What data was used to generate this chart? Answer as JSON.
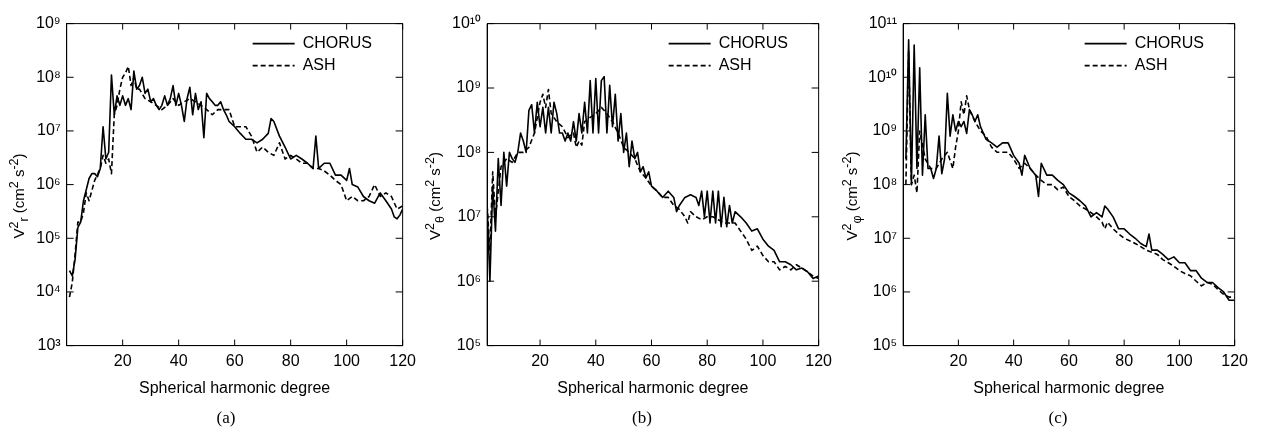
{
  "chart_data": [
    {
      "type": "line",
      "ylabel": "V$^{2}$$_{r}$ (cm$^{2}$ s$^{-2}$)",
      "xlabel": "Spherical harmonic degree",
      "annotations": [
        "(a)"
      ],
      "log": "y",
      "legend": "top right",
      "xlim": [
        0,
        120
      ],
      "xticks": [
        20,
        40,
        60,
        80,
        100,
        120
      ],
      "ylim": [
        1000,
        1000000000
      ],
      "yticks": [
        {
          "value": 1000,
          "label": "10³"
        },
        {
          "value": 10000,
          "label": "10⁴"
        },
        {
          "value": 100000,
          "label": "10⁵"
        },
        {
          "value": 1000000,
          "label": "10⁶"
        },
        {
          "value": 10000000,
          "label": "10⁷"
        },
        {
          "value": 100000000,
          "label": "10⁸"
        },
        {
          "value": 1000000000,
          "label": "10⁹"
        }
      ],
      "series": [
        {
          "name": "CHORUS",
          "color": "#000000",
          "line_style": "solid",
          "x": [
            1,
            2,
            3,
            4,
            5,
            6,
            7,
            8,
            9,
            10,
            11,
            12,
            13,
            14,
            15,
            16,
            17,
            18,
            19,
            20,
            21,
            22,
            23,
            24,
            25,
            26,
            27,
            28,
            29,
            30,
            31,
            32,
            33,
            34,
            35,
            36,
            37,
            38,
            39,
            40,
            41,
            42,
            43,
            44,
            45,
            46,
            47,
            48,
            49,
            50,
            51,
            52,
            53,
            54,
            55,
            56,
            57,
            58,
            60,
            62,
            64,
            66,
            68,
            70,
            72,
            73,
            74,
            76,
            78,
            80,
            82,
            84,
            86,
            88,
            89,
            90,
            92,
            94,
            96,
            98,
            100,
            101,
            102,
            104,
            106,
            108,
            110,
            112,
            114,
            116,
            117,
            118,
            119,
            120
          ],
          "values": [
            25000,
            20000,
            40000,
            160000,
            200000,
            500000,
            800000,
            1300000,
            1600000,
            1600000,
            1400000,
            2000000,
            12000000,
            3000000,
            4000000,
            110000000,
            20000000,
            45000000,
            30000000,
            45000000,
            30000000,
            40000000,
            25000000,
            130000000,
            60000000,
            70000000,
            100000000,
            50000000,
            60000000,
            35000000,
            40000000,
            30000000,
            25000000,
            30000000,
            45000000,
            30000000,
            40000000,
            70000000,
            30000000,
            50000000,
            30000000,
            15000000,
            40000000,
            65000000,
            20000000,
            50000000,
            25000000,
            35000000,
            7500000,
            50000000,
            40000000,
            35000000,
            30000000,
            30000000,
            35000000,
            25000000,
            20000000,
            15000000,
            12000000,
            9000000,
            7000000,
            7000000,
            6000000,
            7000000,
            9000000,
            17000000,
            15000000,
            8000000,
            5000000,
            3000000,
            3500000,
            3000000,
            2500000,
            2000000,
            8000000,
            2000000,
            2500000,
            2500000,
            1500000,
            1500000,
            1200000,
            2000000,
            1000000,
            900000,
            600000,
            500000,
            450000,
            700000,
            500000,
            350000,
            250000,
            230000,
            270000,
            350000
          ]
        },
        {
          "name": "ASH",
          "color": "#000000",
          "line_style": "dashed",
          "x": [
            1,
            2,
            3,
            4,
            5,
            6,
            7,
            8,
            10,
            12,
            13,
            14,
            15,
            16,
            17,
            18,
            19,
            20,
            21,
            22,
            23,
            24,
            25,
            26,
            28,
            30,
            32,
            34,
            36,
            38,
            40,
            42,
            44,
            46,
            48,
            50,
            52,
            54,
            56,
            58,
            60,
            62,
            64,
            66,
            68,
            70,
            72,
            74,
            76,
            78,
            80,
            82,
            84,
            86,
            88,
            90,
            92,
            94,
            96,
            98,
            100,
            102,
            104,
            106,
            108,
            110,
            112,
            114,
            116,
            118,
            120
          ],
          "values": [
            8000,
            15000,
            50000,
            200000,
            200000,
            300000,
            700000,
            500000,
            1200000,
            2000000,
            3500000,
            2500000,
            3000000,
            1600000,
            20000000,
            30000000,
            60000000,
            100000000,
            120000000,
            160000000,
            70000000,
            100000000,
            60000000,
            60000000,
            40000000,
            35000000,
            30000000,
            25000000,
            30000000,
            40000000,
            30000000,
            35000000,
            40000000,
            35000000,
            30000000,
            25000000,
            20000000,
            25000000,
            25000000,
            25000000,
            12000000,
            12000000,
            12000000,
            8000000,
            4000000,
            5000000,
            4000000,
            3500000,
            6000000,
            3000000,
            3500000,
            3000000,
            2500000,
            2500000,
            2000000,
            2000000,
            1800000,
            1500000,
            1200000,
            1000000,
            500000,
            600000,
            500000,
            500000,
            600000,
            1000000,
            600000,
            700000,
            600000,
            350000,
            400000
          ]
        }
      ]
    },
    {
      "type": "line",
      "ylabel": "V$^{2}$$_{θ}$ (cm$^{2}$ s$^{-2}$)",
      "xlabel": "Spherical harmonic degree",
      "annotations": [
        "(b)"
      ],
      "log": "y",
      "legend": "top right",
      "xlim": [
        1,
        120
      ],
      "xticks": [
        20,
        40,
        60,
        80,
        100,
        120
      ],
      "ylim": [
        100000,
        10000000000
      ],
      "yticks": [
        {
          "value": 100000,
          "label": "10⁵"
        },
        {
          "value": 1000000,
          "label": "10⁶"
        },
        {
          "value": 10000000,
          "label": "10⁷"
        },
        {
          "value": 100000000,
          "label": "10⁸"
        },
        {
          "value": 1000000000,
          "label": "10⁹"
        },
        {
          "value": 10000000000,
          "label": "10¹⁰"
        }
      ],
      "series": [
        {
          "name": "CHORUS",
          "color": "#000000",
          "line_style": "solid",
          "x": [
            1,
            2,
            3,
            4,
            5,
            6,
            7,
            8,
            9,
            10,
            11,
            12,
            13,
            14,
            15,
            16,
            17,
            18,
            19,
            20,
            21,
            22,
            23,
            24,
            25,
            26,
            27,
            28,
            29,
            30,
            31,
            32,
            33,
            34,
            35,
            36,
            37,
            38,
            39,
            40,
            41,
            42,
            43,
            44,
            45,
            46,
            47,
            48,
            49,
            50,
            51,
            52,
            53,
            54,
            55,
            56,
            57,
            58,
            59,
            60,
            62,
            64,
            66,
            68,
            69,
            70,
            72,
            74,
            76,
            77,
            78,
            79,
            80,
            81,
            82,
            83,
            84,
            85,
            86,
            87,
            88,
            89,
            90,
            92,
            94,
            96,
            98,
            100,
            102,
            104,
            106,
            108,
            110,
            112,
            114,
            116,
            118,
            120
          ],
          "values": [
            15000000,
            1000000,
            30000000,
            6000000,
            80000000,
            15000000,
            100000000,
            30000000,
            100000000,
            80000000,
            70000000,
            100000000,
            200000000,
            150000000,
            100000000,
            450000000,
            550000000,
            200000000,
            600000000,
            250000000,
            500000000,
            200000000,
            500000000,
            200000000,
            600000000,
            400000000,
            200000000,
            200000000,
            150000000,
            200000000,
            150000000,
            300000000,
            150000000,
            400000000,
            200000000,
            600000000,
            200000000,
            1300000000,
            200000000,
            1400000000,
            200000000,
            1300000000,
            1500000000,
            200000000,
            1100000000,
            250000000,
            800000000,
            150000000,
            400000000,
            100000000,
            200000000,
            60000000,
            150000000,
            80000000,
            100000000,
            50000000,
            60000000,
            40000000,
            50000000,
            30000000,
            25000000,
            20000000,
            25000000,
            20000000,
            12000000,
            15000000,
            20000000,
            22000000,
            20000000,
            15000000,
            25000000,
            10000000,
            25000000,
            8000000,
            25000000,
            8000000,
            25000000,
            7000000,
            20000000,
            7000000,
            15000000,
            8000000,
            12000000,
            10000000,
            8000000,
            6000000,
            6500000,
            4500000,
            3500000,
            3000000,
            2000000,
            2000000,
            1800000,
            1500000,
            1600000,
            1400000,
            1100000,
            1200000
          ]
        },
        {
          "name": "ASH",
          "color": "#000000",
          "line_style": "dashed",
          "x": [
            1,
            2,
            3,
            4,
            6,
            8,
            10,
            12,
            14,
            16,
            18,
            20,
            21,
            22,
            23,
            24,
            26,
            28,
            30,
            32,
            33,
            34,
            35,
            36,
            38,
            40,
            42,
            44,
            46,
            48,
            50,
            52,
            54,
            56,
            58,
            60,
            62,
            64,
            66,
            68,
            70,
            72,
            73,
            74,
            76,
            78,
            80,
            82,
            84,
            86,
            88,
            90,
            92,
            94,
            96,
            98,
            100,
            102,
            104,
            106,
            108,
            110,
            112,
            114,
            116,
            118,
            120
          ],
          "values": [
            15000000,
            3000000,
            50000000,
            10000000,
            60000000,
            80000000,
            70000000,
            100000000,
            100000000,
            120000000,
            200000000,
            600000000,
            800000000,
            500000000,
            950000000,
            400000000,
            300000000,
            250000000,
            170000000,
            200000000,
            120000000,
            150000000,
            130000000,
            300000000,
            350000000,
            400000000,
            500000000,
            400000000,
            300000000,
            200000000,
            120000000,
            100000000,
            80000000,
            50000000,
            40000000,
            30000000,
            25000000,
            20000000,
            20000000,
            15000000,
            13000000,
            10000000,
            8000000,
            12000000,
            10000000,
            9000000,
            10000000,
            10000000,
            9000000,
            8000000,
            8000000,
            8000000,
            6000000,
            4500000,
            3000000,
            3500000,
            2500000,
            2000000,
            2000000,
            1500000,
            1700000,
            1500000,
            1800000,
            1600000,
            1400000,
            1200000,
            1100000
          ]
        }
      ]
    },
    {
      "type": "line",
      "ylabel": "V$^{2}$$_{φ}$ (cm$^{2}$ s$^{-2}$)",
      "xlabel": "Spherical harmonic degree",
      "annotations": [
        "(c)"
      ],
      "log": "y",
      "legend": "top right",
      "xlim": [
        0,
        120
      ],
      "xticks": [
        20,
        40,
        60,
        80,
        100,
        120
      ],
      "ylim": [
        100000,
        100000000000
      ],
      "yticks": [
        {
          "value": 100000,
          "label": "10⁵"
        },
        {
          "value": 1000000,
          "label": "10⁶"
        },
        {
          "value": 10000000,
          "label": "10⁷"
        },
        {
          "value": 100000000,
          "label": "10⁸"
        },
        {
          "value": 1000000000,
          "label": "10⁹"
        },
        {
          "value": 10000000000,
          "label": "10¹⁰"
        },
        {
          "value": 100000000000,
          "label": "10¹¹"
        }
      ],
      "series": [
        {
          "name": "CHORUS",
          "color": "#000000",
          "line_style": "solid",
          "x": [
            1,
            2,
            3,
            4,
            5,
            6,
            7,
            8,
            9,
            10,
            11,
            12,
            13,
            14,
            15,
            16,
            17,
            18,
            19,
            20,
            21,
            22,
            23,
            24,
            25,
            26,
            27,
            28,
            30,
            32,
            34,
            36,
            38,
            40,
            42,
            43,
            44,
            46,
            48,
            49,
            50,
            52,
            54,
            56,
            58,
            60,
            62,
            64,
            66,
            68,
            70,
            72,
            73,
            74,
            76,
            78,
            80,
            82,
            84,
            86,
            88,
            89,
            90,
            92,
            94,
            96,
            98,
            100,
            102,
            104,
            106,
            108,
            110,
            112,
            114,
            116,
            118,
            120
          ],
          "values": [
            300000000,
            50000000000,
            100000000,
            40000000000,
            200000000,
            15000000000,
            150000000,
            2000000000,
            200000000,
            200000000,
            130000000,
            200000000,
            800000000,
            160000000,
            300000000,
            5000000000,
            800000000,
            2000000000,
            1000000000,
            1500000000,
            1200000000,
            1500000000,
            900000000,
            2500000000,
            2000000000,
            1500000000,
            2000000000,
            1200000000,
            700000000,
            600000000,
            500000000,
            600000000,
            600000000,
            350000000,
            250000000,
            150000000,
            350000000,
            200000000,
            150000000,
            60000000,
            250000000,
            150000000,
            150000000,
            120000000,
            100000000,
            70000000,
            60000000,
            50000000,
            40000000,
            25000000,
            30000000,
            25000000,
            40000000,
            35000000,
            25000000,
            15000000,
            15000000,
            12000000,
            10000000,
            8000000,
            7000000,
            12000000,
            6000000,
            6000000,
            5000000,
            4000000,
            4500000,
            3500000,
            3500000,
            2500000,
            2500000,
            1800000,
            1500000,
            1500000,
            1200000,
            1000000,
            700000,
            700000
          ]
        },
        {
          "name": "ASH",
          "color": "#000000",
          "line_style": "dashed",
          "x": [
            1,
            2,
            3,
            4,
            5,
            6,
            8,
            10,
            12,
            14,
            16,
            18,
            19,
            20,
            21,
            22,
            23,
            24,
            26,
            28,
            30,
            32,
            34,
            36,
            38,
            40,
            42,
            44,
            46,
            48,
            50,
            52,
            54,
            56,
            58,
            60,
            62,
            64,
            66,
            68,
            70,
            72,
            73,
            74,
            76,
            78,
            80,
            82,
            84,
            86,
            88,
            90,
            92,
            94,
            96,
            98,
            100,
            102,
            104,
            106,
            108,
            110,
            112,
            114,
            116,
            118,
            120
          ],
          "values": [
            100000000,
            30000000000,
            100000000,
            150000000,
            70000000,
            1000000000,
            300000000,
            200000000,
            200000000,
            300000000,
            400000000,
            200000000,
            500000000,
            1000000000,
            3500000000,
            2000000000,
            4500000000,
            2500000000,
            1500000000,
            1000000000,
            800000000,
            500000000,
            400000000,
            400000000,
            400000000,
            300000000,
            200000000,
            250000000,
            200000000,
            150000000,
            120000000,
            100000000,
            100000000,
            80000000,
            90000000,
            60000000,
            50000000,
            40000000,
            35000000,
            30000000,
            25000000,
            20000000,
            15000000,
            20000000,
            15000000,
            12000000,
            10000000,
            9000000,
            8000000,
            7000000,
            6000000,
            5500000,
            5000000,
            4000000,
            3500000,
            3000000,
            2500000,
            2200000,
            2000000,
            1600000,
            1300000,
            1500000,
            1400000,
            1100000,
            900000,
            800000,
            800000
          ]
        }
      ]
    }
  ]
}
